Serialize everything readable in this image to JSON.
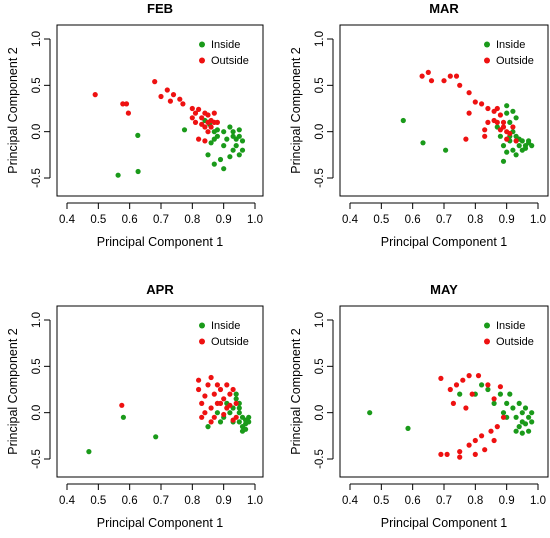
{
  "colors": {
    "inside": "#1a9a1a",
    "outside": "#ee1111"
  },
  "chart_data": [
    {
      "type": "scatter",
      "title": "FEB",
      "xlabel": "Principal Component 1",
      "ylabel": "Principal Component 2",
      "xlim": [
        0.4,
        1.0
      ],
      "ylim": [
        -0.5,
        1.0
      ],
      "xticks": [
        "0.4",
        "0.5",
        "0.6",
        "0.7",
        "0.8",
        "0.9",
        "1.0"
      ],
      "yticks": [
        "-0.5",
        "0.0",
        "0.5",
        "1.0"
      ],
      "legend": {
        "position": "top-right",
        "entries": [
          "Inside",
          "Outside"
        ]
      },
      "series": [
        {
          "name": "Inside",
          "color": "inside",
          "points": [
            [
              0.563,
              -0.47
            ],
            [
              0.627,
              -0.43
            ],
            [
              0.626,
              -0.04
            ],
            [
              0.775,
              0.02
            ],
            [
              0.84,
              0.12
            ],
            [
              0.855,
              0.08
            ],
            [
              0.87,
              0.0
            ],
            [
              0.88,
              -0.05
            ],
            [
              0.86,
              -0.12
            ],
            [
              0.85,
              -0.25
            ],
            [
              0.87,
              -0.35
            ],
            [
              0.89,
              -0.3
            ],
            [
              0.9,
              -0.4
            ],
            [
              0.92,
              -0.27
            ],
            [
              0.93,
              -0.2
            ],
            [
              0.95,
              -0.25
            ],
            [
              0.94,
              -0.15
            ],
            [
              0.96,
              -0.2
            ],
            [
              0.91,
              -0.08
            ],
            [
              0.9,
              0.0
            ],
            [
              0.92,
              0.05
            ],
            [
              0.93,
              -0.05
            ],
            [
              0.94,
              -0.08
            ],
            [
              0.95,
              -0.05
            ],
            [
              0.96,
              -0.1
            ],
            [
              0.88,
              0.02
            ],
            [
              0.87,
              -0.08
            ],
            [
              0.9,
              -0.15
            ],
            [
              0.93,
              0.0
            ],
            [
              0.95,
              0.02
            ]
          ]
        },
        {
          "name": "Outside",
          "color": "outside",
          "points": [
            [
              0.49,
              0.4
            ],
            [
              0.578,
              0.3
            ],
            [
              0.59,
              0.3
            ],
            [
              0.596,
              0.2
            ],
            [
              0.68,
              0.54
            ],
            [
              0.7,
              0.38
            ],
            [
              0.72,
              0.45
            ],
            [
              0.74,
              0.4
            ],
            [
              0.76,
              0.35
            ],
            [
              0.77,
              0.3
            ],
            [
              0.73,
              0.33
            ],
            [
              0.8,
              0.25
            ],
            [
              0.81,
              0.2
            ],
            [
              0.82,
              0.24
            ],
            [
              0.83,
              0.15
            ],
            [
              0.84,
              0.2
            ],
            [
              0.85,
              0.18
            ],
            [
              0.86,
              0.12
            ],
            [
              0.87,
              0.1
            ],
            [
              0.88,
              0.1
            ],
            [
              0.81,
              0.1
            ],
            [
              0.8,
              0.15
            ],
            [
              0.83,
              0.08
            ],
            [
              0.84,
              0.05
            ],
            [
              0.86,
              0.05
            ],
            [
              0.82,
              -0.08
            ],
            [
              0.84,
              -0.1
            ],
            [
              0.87,
              0.2
            ],
            [
              0.85,
              0.1
            ],
            [
              0.85,
              0.0
            ]
          ]
        }
      ]
    },
    {
      "type": "scatter",
      "title": "MAR",
      "xlabel": "Principal Component 1",
      "ylabel": "Principal Component 2",
      "xlim": [
        0.4,
        1.0
      ],
      "ylim": [
        -0.5,
        1.0
      ],
      "xticks": [
        "0.4",
        "0.5",
        "0.6",
        "0.7",
        "0.8",
        "0.9",
        "1.0"
      ],
      "yticks": [
        "-0.5",
        "0.0",
        "0.5",
        "1.0"
      ],
      "legend": {
        "position": "top-right",
        "entries": [
          "Inside",
          "Outside"
        ]
      },
      "series": [
        {
          "name": "Inside",
          "color": "inside",
          "points": [
            [
              0.57,
              0.12
            ],
            [
              0.633,
              -0.12
            ],
            [
              0.705,
              -0.2
            ],
            [
              0.87,
              0.05
            ],
            [
              0.88,
              -0.05
            ],
            [
              0.89,
              -0.15
            ],
            [
              0.89,
              -0.32
            ],
            [
              0.9,
              0.2
            ],
            [
              0.9,
              0.28
            ],
            [
              0.91,
              0.1
            ],
            [
              0.91,
              -0.1
            ],
            [
              0.92,
              -0.2
            ],
            [
              0.93,
              -0.25
            ],
            [
              0.94,
              -0.15
            ],
            [
              0.95,
              -0.2
            ],
            [
              0.96,
              -0.15
            ],
            [
              0.97,
              -0.1
            ],
            [
              0.95,
              -0.1
            ],
            [
              0.93,
              -0.05
            ],
            [
              0.92,
              0.0
            ],
            [
              0.94,
              -0.08
            ],
            [
              0.96,
              -0.18
            ],
            [
              0.97,
              -0.12
            ],
            [
              0.98,
              -0.15
            ],
            [
              0.9,
              -0.22
            ],
            [
              0.91,
              -0.05
            ],
            [
              0.92,
              0.22
            ],
            [
              0.93,
              0.15
            ]
          ]
        },
        {
          "name": "Outside",
          "color": "outside",
          "points": [
            [
              0.63,
              0.6
            ],
            [
              0.65,
              0.64
            ],
            [
              0.66,
              0.55
            ],
            [
              0.7,
              0.55
            ],
            [
              0.72,
              0.6
            ],
            [
              0.74,
              0.6
            ],
            [
              0.75,
              0.5
            ],
            [
              0.78,
              0.42
            ],
            [
              0.78,
              0.2
            ],
            [
              0.8,
              0.32
            ],
            [
              0.82,
              0.3
            ],
            [
              0.84,
              0.25
            ],
            [
              0.86,
              0.22
            ],
            [
              0.88,
              0.18
            ],
            [
              0.87,
              0.1
            ],
            [
              0.89,
              0.05
            ],
            [
              0.9,
              0.0
            ],
            [
              0.91,
              -0.02
            ],
            [
              0.92,
              0.05
            ],
            [
              0.88,
              0.02
            ],
            [
              0.86,
              0.12
            ],
            [
              0.84,
              0.1
            ],
            [
              0.83,
              0.02
            ],
            [
              0.83,
              -0.05
            ],
            [
              0.77,
              -0.08
            ],
            [
              0.89,
              0.1
            ],
            [
              0.9,
              -0.08
            ],
            [
              0.93,
              -0.1
            ],
            [
              0.87,
              0.25
            ]
          ]
        }
      ]
    },
    {
      "type": "scatter",
      "title": "APR",
      "xlabel": "Principal Component 1",
      "ylabel": "Principal Component 2",
      "xlim": [
        0.4,
        1.0
      ],
      "ylim": [
        -0.5,
        1.0
      ],
      "xticks": [
        "0.4",
        "0.5",
        "0.6",
        "0.7",
        "0.8",
        "0.9",
        "1.0"
      ],
      "yticks": [
        "-0.5",
        "0.0",
        "0.5",
        "1.0"
      ],
      "legend": {
        "position": "top-right",
        "entries": [
          "Inside",
          "Outside"
        ]
      },
      "series": [
        {
          "name": "Inside",
          "color": "inside",
          "points": [
            [
              0.47,
              -0.42
            ],
            [
              0.58,
              -0.05
            ],
            [
              0.683,
              -0.26
            ],
            [
              0.85,
              -0.15
            ],
            [
              0.88,
              0.0
            ],
            [
              0.89,
              -0.1
            ],
            [
              0.9,
              -0.05
            ],
            [
              0.91,
              0.1
            ],
            [
              0.92,
              0.0
            ],
            [
              0.93,
              -0.1
            ],
            [
              0.94,
              0.2
            ],
            [
              0.94,
              0.15
            ],
            [
              0.95,
              0.1
            ],
            [
              0.95,
              0.0
            ],
            [
              0.95,
              -0.1
            ],
            [
              0.96,
              -0.15
            ],
            [
              0.96,
              -0.05
            ],
            [
              0.97,
              -0.12
            ],
            [
              0.97,
              -0.08
            ],
            [
              0.98,
              -0.1
            ],
            [
              0.98,
              -0.05
            ],
            [
              0.97,
              -0.18
            ],
            [
              0.96,
              -0.2
            ],
            [
              0.95,
              0.05
            ],
            [
              0.93,
              0.05
            ]
          ]
        },
        {
          "name": "Outside",
          "color": "outside",
          "points": [
            [
              0.575,
              0.08
            ],
            [
              0.82,
              0.35
            ],
            [
              0.82,
              0.25
            ],
            [
              0.83,
              0.1
            ],
            [
              0.84,
              0.0
            ],
            [
              0.84,
              0.18
            ],
            [
              0.85,
              0.3
            ],
            [
              0.86,
              0.38
            ],
            [
              0.86,
              0.05
            ],
            [
              0.87,
              -0.05
            ],
            [
              0.87,
              0.2
            ],
            [
              0.88,
              0.3
            ],
            [
              0.89,
              0.25
            ],
            [
              0.89,
              0.1
            ],
            [
              0.9,
              0.15
            ],
            [
              0.9,
              -0.02
            ],
            [
              0.91,
              0.3
            ],
            [
              0.91,
              0.05
            ],
            [
              0.92,
              0.2
            ],
            [
              0.92,
              0.08
            ],
            [
              0.93,
              0.25
            ],
            [
              0.93,
              -0.08
            ],
            [
              0.94,
              0.1
            ],
            [
              0.94,
              -0.05
            ],
            [
              0.83,
              -0.05
            ],
            [
              0.86,
              -0.1
            ],
            [
              0.88,
              0.1
            ]
          ]
        }
      ]
    },
    {
      "type": "scatter",
      "title": "MAY",
      "xlabel": "Principal Component 1",
      "ylabel": "Principal Component 2",
      "xlim": [
        0.4,
        1.0
      ],
      "ylim": [
        -0.5,
        1.0
      ],
      "xticks": [
        "0.4",
        "0.5",
        "0.6",
        "0.7",
        "0.8",
        "0.9",
        "1.0"
      ],
      "yticks": [
        "-0.5",
        "0.0",
        "0.5",
        "1.0"
      ],
      "legend": {
        "position": "top-right",
        "entries": [
          "Inside",
          "Outside"
        ]
      },
      "series": [
        {
          "name": "Inside",
          "color": "inside",
          "points": [
            [
              0.463,
              0.0
            ],
            [
              0.585,
              -0.17
            ],
            [
              0.75,
              0.2
            ],
            [
              0.8,
              0.2
            ],
            [
              0.82,
              0.3
            ],
            [
              0.84,
              0.25
            ],
            [
              0.86,
              0.1
            ],
            [
              0.88,
              0.2
            ],
            [
              0.89,
              0.0
            ],
            [
              0.9,
              0.1
            ],
            [
              0.9,
              -0.05
            ],
            [
              0.91,
              0.2
            ],
            [
              0.92,
              0.05
            ],
            [
              0.93,
              -0.05
            ],
            [
              0.94,
              0.1
            ],
            [
              0.94,
              -0.15
            ],
            [
              0.95,
              0.0
            ],
            [
              0.95,
              -0.1
            ],
            [
              0.96,
              0.05
            ],
            [
              0.96,
              -0.12
            ],
            [
              0.97,
              -0.05
            ],
            [
              0.97,
              -0.2
            ],
            [
              0.98,
              0.0
            ],
            [
              0.98,
              -0.1
            ],
            [
              0.93,
              -0.2
            ],
            [
              0.95,
              -0.22
            ]
          ]
        },
        {
          "name": "Outside",
          "color": "outside",
          "points": [
            [
              0.69,
              0.37
            ],
            [
              0.69,
              -0.45
            ],
            [
              0.71,
              -0.45
            ],
            [
              0.72,
              0.25
            ],
            [
              0.73,
              0.1
            ],
            [
              0.74,
              0.3
            ],
            [
              0.75,
              -0.42
            ],
            [
              0.75,
              -0.48
            ],
            [
              0.76,
              0.35
            ],
            [
              0.77,
              0.05
            ],
            [
              0.78,
              -0.35
            ],
            [
              0.79,
              0.2
            ],
            [
              0.8,
              -0.3
            ],
            [
              0.81,
              0.4
            ],
            [
              0.82,
              -0.25
            ],
            [
              0.83,
              -0.4
            ],
            [
              0.84,
              0.3
            ],
            [
              0.85,
              -0.2
            ],
            [
              0.86,
              0.15
            ],
            [
              0.87,
              -0.15
            ],
            [
              0.88,
              0.28
            ],
            [
              0.89,
              -0.05
            ],
            [
              0.86,
              -0.3
            ],
            [
              0.78,
              0.4
            ],
            [
              0.8,
              -0.45
            ]
          ]
        }
      ]
    }
  ]
}
